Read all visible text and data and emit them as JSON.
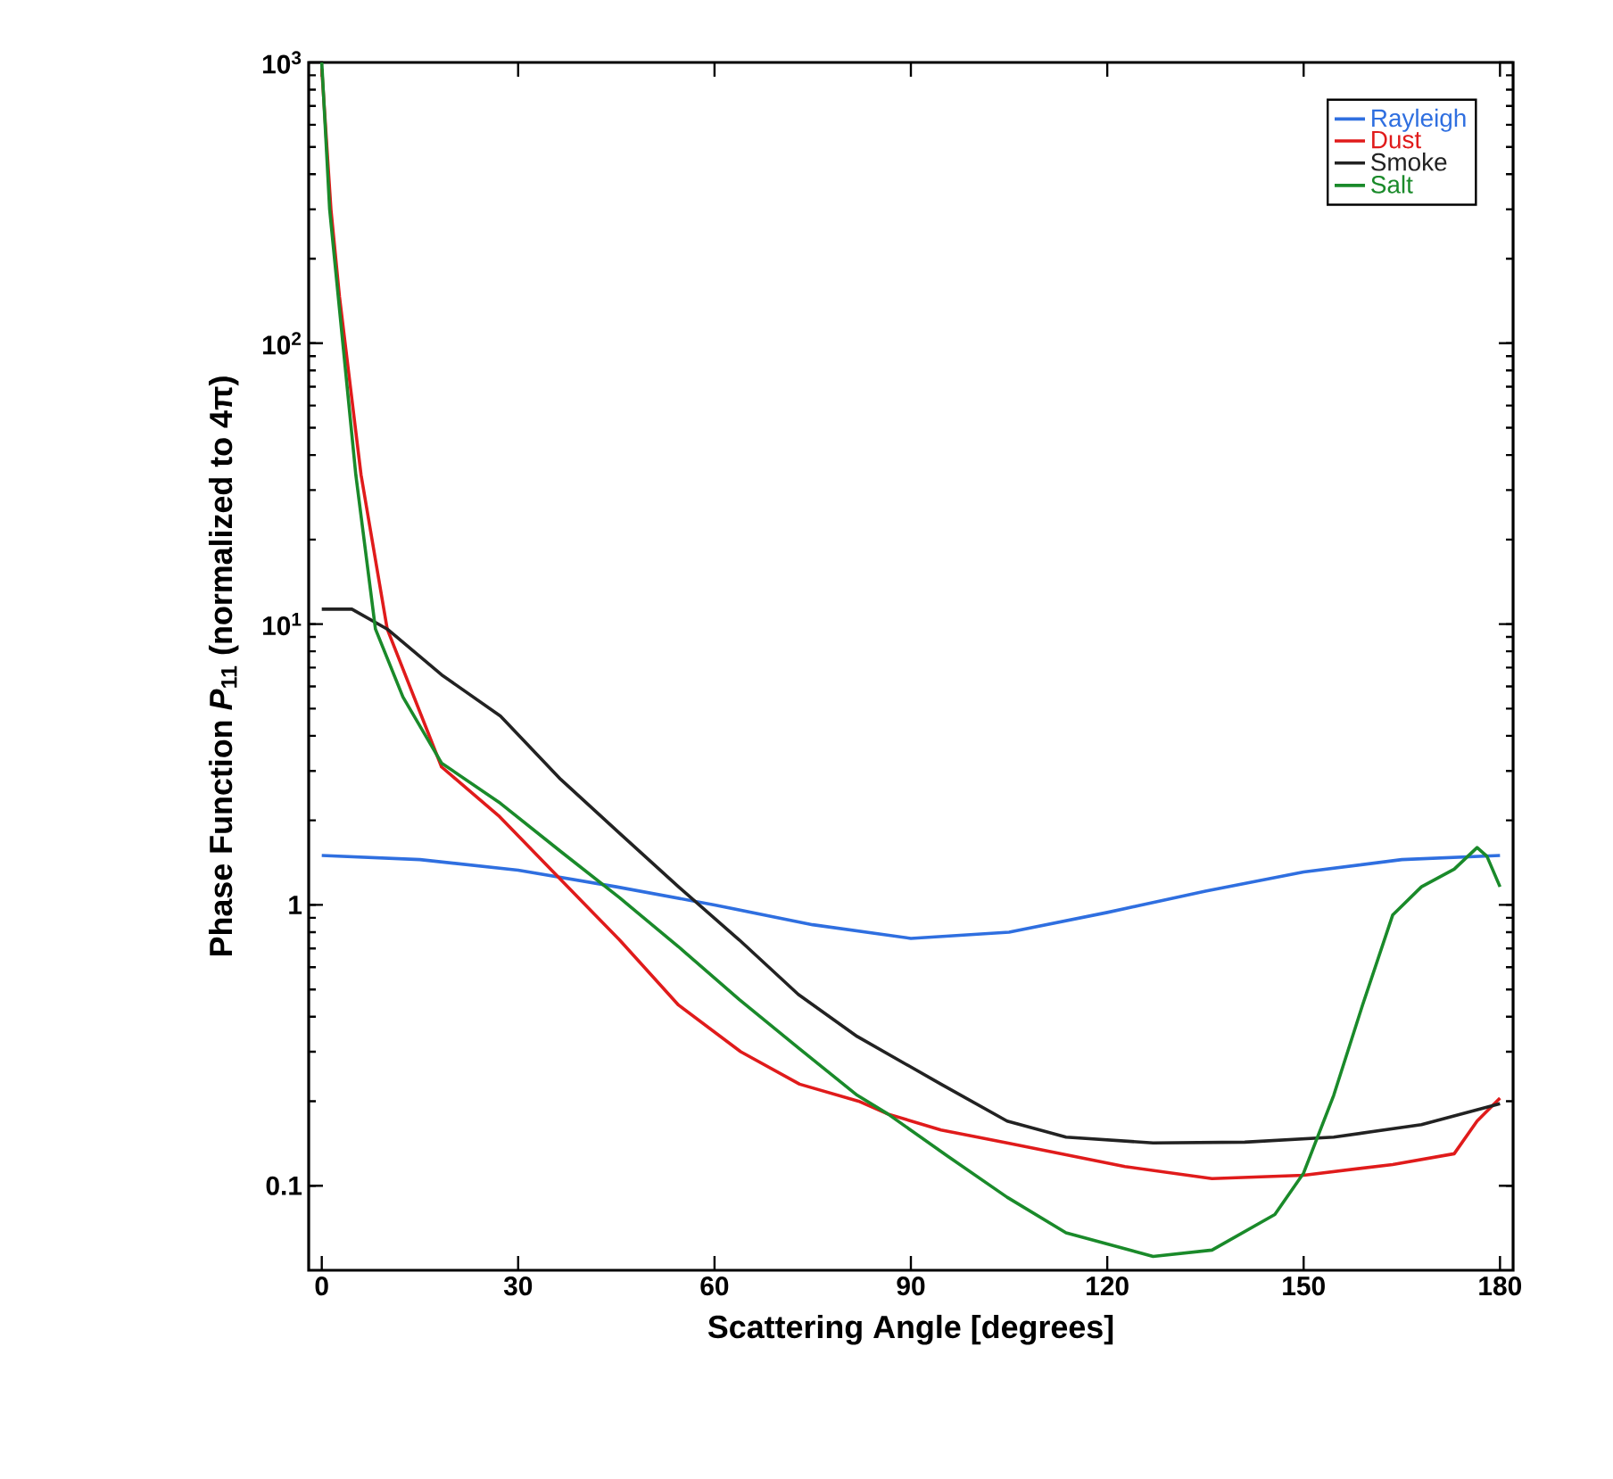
{
  "chart_data": {
    "type": "line",
    "xlabel": "Scattering Angle [degrees]",
    "ylabel": "Phase Function *P*$_{11}$  (normalized to 4π)",
    "log": "y",
    "grid": false,
    "legend": "top right",
    "marker": "none",
    "line_style": "solid",
    "xlim": [
      -2,
      182
    ],
    "ylim": [
      0.05,
      1000
    ],
    "xticks": [
      0,
      30,
      60,
      90,
      120,
      150,
      180
    ],
    "yticks": [
      {
        "value": 0.1,
        "label": "0.1"
      },
      {
        "value": 1,
        "label": "1"
      },
      {
        "value": 10,
        "label": "10$^{1}$"
      },
      {
        "value": 100,
        "label": "10$^{2}$"
      },
      {
        "value": 1000,
        "label": "10$^{3}$"
      }
    ],
    "series": [
      {
        "name": "Rayleigh",
        "color": "#2f6fe0",
        "x": [
          0,
          15,
          30,
          45,
          60,
          75,
          90,
          105,
          120,
          135,
          150,
          165,
          180
        ],
        "values": [
          1.5,
          1.45,
          1.33,
          1.16,
          1.0,
          0.85,
          0.76,
          0.8,
          0.94,
          1.12,
          1.31,
          1.45,
          1.5
        ]
      },
      {
        "name": "Dust",
        "color": "#e01b1b",
        "x": [
          0,
          1.4,
          2.7,
          6,
          10,
          18.3,
          27,
          36.5,
          45.5,
          54.5,
          64,
          73,
          82,
          86.5,
          94.6,
          104.7,
          122.7,
          136,
          150,
          163.6,
          173,
          176.5,
          180
        ],
        "values": [
          950,
          300,
          147,
          34,
          9.6,
          3.1,
          2.08,
          1.23,
          0.75,
          0.44,
          0.3,
          0.23,
          0.2,
          0.18,
          0.158,
          0.142,
          0.117,
          0.106,
          0.109,
          0.119,
          0.13,
          0.17,
          0.205
        ]
      },
      {
        "name": "Smoke",
        "color": "#222222",
        "x": [
          0,
          4.6,
          10,
          18.3,
          27.3,
          36.5,
          45.5,
          54.5,
          63.8,
          72.8,
          81.8,
          94.6,
          104.7,
          113.7,
          127,
          141,
          154.6,
          168,
          180
        ],
        "values": [
          11.3,
          11.3,
          9.6,
          6.6,
          4.7,
          2.8,
          1.8,
          1.16,
          0.75,
          0.48,
          0.34,
          0.23,
          0.17,
          0.149,
          0.142,
          0.143,
          0.149,
          0.165,
          0.196
        ]
      },
      {
        "name": "Salt",
        "color": "#1a8a2a",
        "x": [
          0,
          1.2,
          5.2,
          8.2,
          12.4,
          18.3,
          27.3,
          36.5,
          45.5,
          54.5,
          63.8,
          72.8,
          81.8,
          86.5,
          95.5,
          104.7,
          113.7,
          127,
          136,
          145.6,
          150,
          154.6,
          159,
          163.6,
          168,
          173,
          176.5,
          178,
          180
        ],
        "values": [
          1000,
          300,
          34,
          9.6,
          5.5,
          3.2,
          2.3,
          1.55,
          1.06,
          0.71,
          0.46,
          0.31,
          0.21,
          0.18,
          0.128,
          0.091,
          0.068,
          0.056,
          0.059,
          0.079,
          0.111,
          0.21,
          0.44,
          0.92,
          1.16,
          1.34,
          1.6,
          1.49,
          1.16
        ]
      }
    ]
  }
}
